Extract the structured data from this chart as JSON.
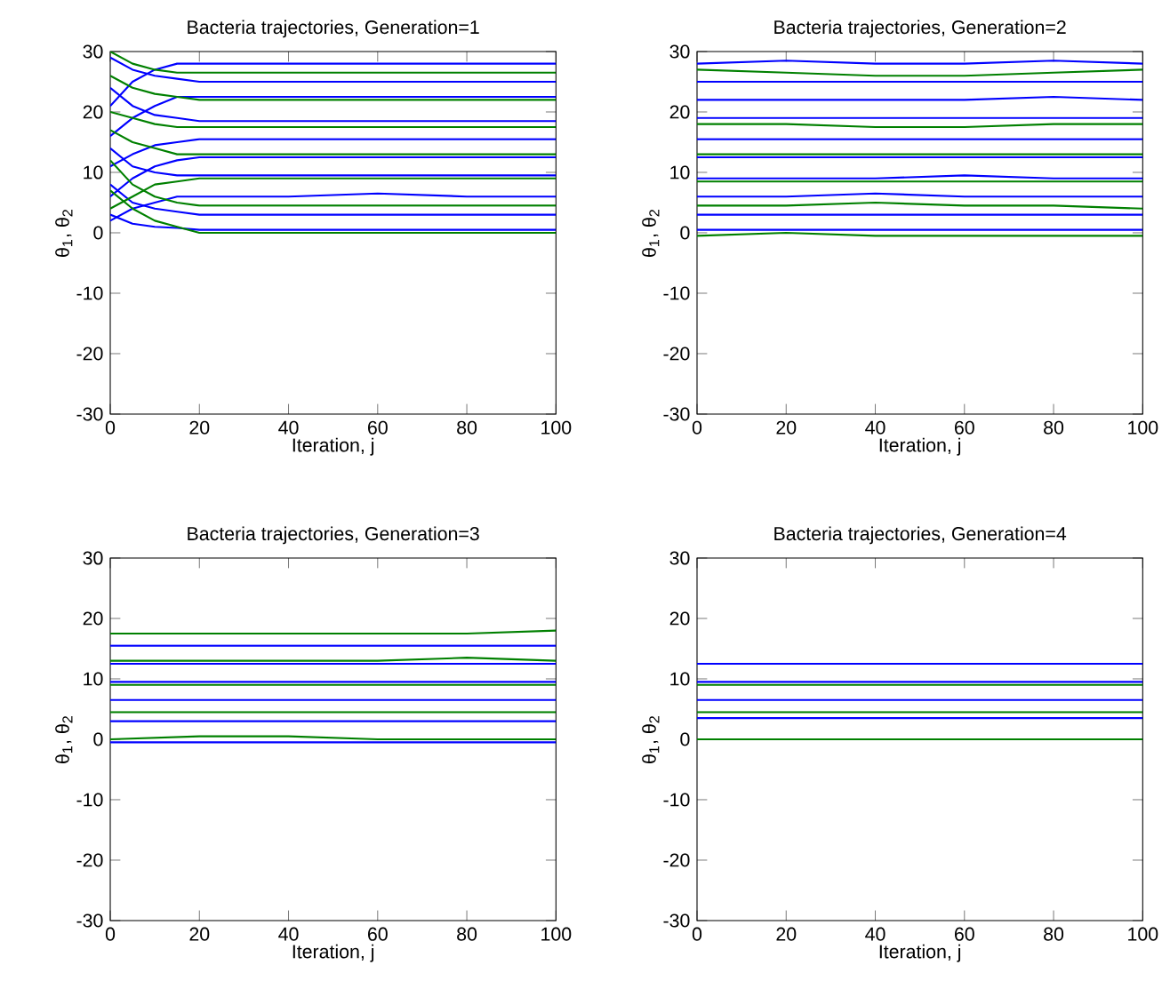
{
  "chart_data": [
    {
      "type": "line",
      "title": "Bacteria trajectories, Generation=1",
      "xlabel": "Iteration, j",
      "ylabel": "θ$_{1}$, θ$_{2}$",
      "xlim": [
        0,
        100
      ],
      "ylim": [
        -30,
        30
      ],
      "xticks": [
        0,
        20,
        40,
        60,
        80,
        100
      ],
      "yticks": [
        -30,
        -20,
        -10,
        0,
        10,
        20,
        30
      ],
      "x": [
        0,
        5,
        10,
        15,
        20,
        40,
        60,
        80,
        100
      ],
      "series": [
        {
          "color": "#0000ff",
          "values": [
            21,
            25,
            27,
            28,
            28,
            28,
            28,
            28,
            28
          ]
        },
        {
          "color": "#0000ff",
          "values": [
            29,
            27,
            26,
            25.5,
            25,
            25,
            25,
            25,
            25
          ]
        },
        {
          "color": "#0000ff",
          "values": [
            16,
            19,
            21,
            22.5,
            22.5,
            22.5,
            22.5,
            22.5,
            22.5
          ]
        },
        {
          "color": "#0000ff",
          "values": [
            24,
            21,
            19.5,
            19,
            18.5,
            18.5,
            18.5,
            18.5,
            18.5
          ]
        },
        {
          "color": "#0000ff",
          "values": [
            11,
            13,
            14.5,
            15,
            15.5,
            15.5,
            15.5,
            15.5,
            15.5
          ]
        },
        {
          "color": "#0000ff",
          "values": [
            6,
            9,
            11,
            12,
            12.5,
            12.5,
            12.5,
            12.5,
            12.5
          ]
        },
        {
          "color": "#0000ff",
          "values": [
            14,
            11,
            10,
            9.5,
            9.5,
            9.5,
            9.5,
            9.5,
            9.5
          ]
        },
        {
          "color": "#0000ff",
          "values": [
            2,
            4,
            5,
            6,
            6,
            6,
            6.5,
            6,
            6
          ]
        },
        {
          "color": "#0000ff",
          "values": [
            8,
            5,
            4,
            3.5,
            3,
            3,
            3,
            3,
            3
          ]
        },
        {
          "color": "#0000ff",
          "values": [
            3,
            1.5,
            1,
            0.8,
            0.5,
            0.5,
            0.5,
            0.5,
            0.5
          ]
        },
        {
          "color": "#008000",
          "values": [
            30,
            28,
            27,
            26.5,
            26.5,
            26.5,
            26.5,
            26.5,
            26.5
          ]
        },
        {
          "color": "#008000",
          "values": [
            26,
            24,
            23,
            22.5,
            22,
            22,
            22,
            22,
            22
          ]
        },
        {
          "color": "#008000",
          "values": [
            20,
            19,
            18,
            17.5,
            17.5,
            17.5,
            17.5,
            17.5,
            17.5
          ]
        },
        {
          "color": "#008000",
          "values": [
            17,
            15,
            14,
            13,
            13,
            13,
            13,
            13,
            13
          ]
        },
        {
          "color": "#008000",
          "values": [
            4,
            6,
            8,
            8.5,
            9,
            9,
            9,
            9,
            9
          ]
        },
        {
          "color": "#008000",
          "values": [
            12,
            8,
            6,
            5,
            4.5,
            4.5,
            4.5,
            4.5,
            4.5
          ]
        },
        {
          "color": "#008000",
          "values": [
            7,
            4,
            2,
            1,
            0,
            0,
            0,
            0,
            0
          ]
        }
      ]
    },
    {
      "type": "line",
      "title": "Bacteria trajectories, Generation=2",
      "xlabel": "Iteration, j",
      "ylabel": "θ$_{1}$, θ$_{2}$",
      "xlim": [
        0,
        100
      ],
      "ylim": [
        -30,
        30
      ],
      "xticks": [
        0,
        20,
        40,
        60,
        80,
        100
      ],
      "yticks": [
        -30,
        -20,
        -10,
        0,
        10,
        20,
        30
      ],
      "x": [
        0,
        20,
        40,
        60,
        80,
        100
      ],
      "series": [
        {
          "color": "#0000ff",
          "values": [
            28,
            28.5,
            28,
            28,
            28.5,
            28
          ]
        },
        {
          "color": "#0000ff",
          "values": [
            25,
            25,
            25,
            25,
            25,
            25
          ]
        },
        {
          "color": "#0000ff",
          "values": [
            22,
            22,
            22,
            22,
            22.5,
            22
          ]
        },
        {
          "color": "#0000ff",
          "values": [
            19,
            19,
            19,
            19,
            19,
            19
          ]
        },
        {
          "color": "#0000ff",
          "values": [
            15.5,
            15.5,
            15.5,
            15.5,
            15.5,
            15.5
          ]
        },
        {
          "color": "#0000ff",
          "values": [
            12.5,
            12.5,
            12.5,
            12.5,
            12.5,
            12.5
          ]
        },
        {
          "color": "#0000ff",
          "values": [
            9,
            9,
            9,
            9.5,
            9,
            9
          ]
        },
        {
          "color": "#0000ff",
          "values": [
            6,
            6,
            6.5,
            6,
            6,
            6
          ]
        },
        {
          "color": "#0000ff",
          "values": [
            3,
            3,
            3,
            3,
            3,
            3
          ]
        },
        {
          "color": "#0000ff",
          "values": [
            0.5,
            0.5,
            0.5,
            0.5,
            0.5,
            0.5
          ]
        },
        {
          "color": "#008000",
          "values": [
            27,
            26.5,
            26,
            26,
            26.5,
            27
          ]
        },
        {
          "color": "#008000",
          "values": [
            18,
            18,
            17.5,
            17.5,
            18,
            18
          ]
        },
        {
          "color": "#008000",
          "values": [
            13,
            13,
            13,
            13,
            13,
            13
          ]
        },
        {
          "color": "#008000",
          "values": [
            8.5,
            8.5,
            8.5,
            8.5,
            8.5,
            8.5
          ]
        },
        {
          "color": "#008000",
          "values": [
            4.5,
            4.5,
            5,
            4.5,
            4.5,
            4
          ]
        },
        {
          "color": "#008000",
          "values": [
            -0.5,
            0,
            -0.5,
            -0.5,
            -0.5,
            -0.5
          ]
        }
      ]
    },
    {
      "type": "line",
      "title": "Bacteria trajectories, Generation=3",
      "xlabel": "Iteration, j",
      "ylabel": "θ$_{1}$, θ$_{2}$",
      "xlim": [
        0,
        100
      ],
      "ylim": [
        -30,
        30
      ],
      "xticks": [
        0,
        20,
        40,
        60,
        80,
        100
      ],
      "yticks": [
        -30,
        -20,
        -10,
        0,
        10,
        20,
        30
      ],
      "x": [
        0,
        20,
        40,
        60,
        80,
        100
      ],
      "series": [
        {
          "color": "#0000ff",
          "values": [
            15.5,
            15.5,
            15.5,
            15.5,
            15.5,
            15.5
          ]
        },
        {
          "color": "#0000ff",
          "values": [
            12.5,
            12.5,
            12.5,
            12.5,
            12.5,
            12.5
          ]
        },
        {
          "color": "#0000ff",
          "values": [
            9.5,
            9.5,
            9.5,
            9.5,
            9.5,
            9.5
          ]
        },
        {
          "color": "#0000ff",
          "values": [
            6.5,
            6.5,
            6.5,
            6.5,
            6.5,
            6.5
          ]
        },
        {
          "color": "#0000ff",
          "values": [
            3,
            3,
            3,
            3,
            3,
            3
          ]
        },
        {
          "color": "#0000ff",
          "values": [
            -0.5,
            -0.5,
            -0.5,
            -0.5,
            -0.5,
            -0.5
          ]
        },
        {
          "color": "#008000",
          "values": [
            17.5,
            17.5,
            17.5,
            17.5,
            17.5,
            18
          ]
        },
        {
          "color": "#008000",
          "values": [
            13,
            13,
            13,
            13,
            13.5,
            13
          ]
        },
        {
          "color": "#008000",
          "values": [
            9,
            9,
            9,
            9,
            9,
            9
          ]
        },
        {
          "color": "#008000",
          "values": [
            4.5,
            4.5,
            4.5,
            4.5,
            4.5,
            4.5
          ]
        },
        {
          "color": "#008000",
          "values": [
            0,
            0.5,
            0.5,
            0,
            0,
            0
          ]
        }
      ]
    },
    {
      "type": "line",
      "title": "Bacteria trajectories, Generation=4",
      "xlabel": "Iteration, j",
      "ylabel": "θ$_{1}$, θ$_{2}$",
      "xlim": [
        0,
        100
      ],
      "ylim": [
        -30,
        30
      ],
      "xticks": [
        0,
        20,
        40,
        60,
        80,
        100
      ],
      "yticks": [
        -30,
        -20,
        -10,
        0,
        10,
        20,
        30
      ],
      "x": [
        0,
        20,
        40,
        60,
        80,
        100
      ],
      "series": [
        {
          "color": "#0000ff",
          "values": [
            12.5,
            12.5,
            12.5,
            12.5,
            12.5,
            12.5
          ]
        },
        {
          "color": "#0000ff",
          "values": [
            9.5,
            9.5,
            9.5,
            9.5,
            9.5,
            9.5
          ]
        },
        {
          "color": "#0000ff",
          "values": [
            6.5,
            6.5,
            6.5,
            6.5,
            6.5,
            6.5
          ]
        },
        {
          "color": "#0000ff",
          "values": [
            3.5,
            3.5,
            3.5,
            3.5,
            3.5,
            3.5
          ]
        },
        {
          "color": "#008000",
          "values": [
            9,
            9,
            9,
            9,
            9,
            9
          ]
        },
        {
          "color": "#008000",
          "values": [
            4.5,
            4.5,
            4.5,
            4.5,
            4.5,
            4.5
          ]
        },
        {
          "color": "#008000",
          "values": [
            0,
            0,
            0,
            0,
            0,
            0
          ]
        }
      ]
    }
  ]
}
